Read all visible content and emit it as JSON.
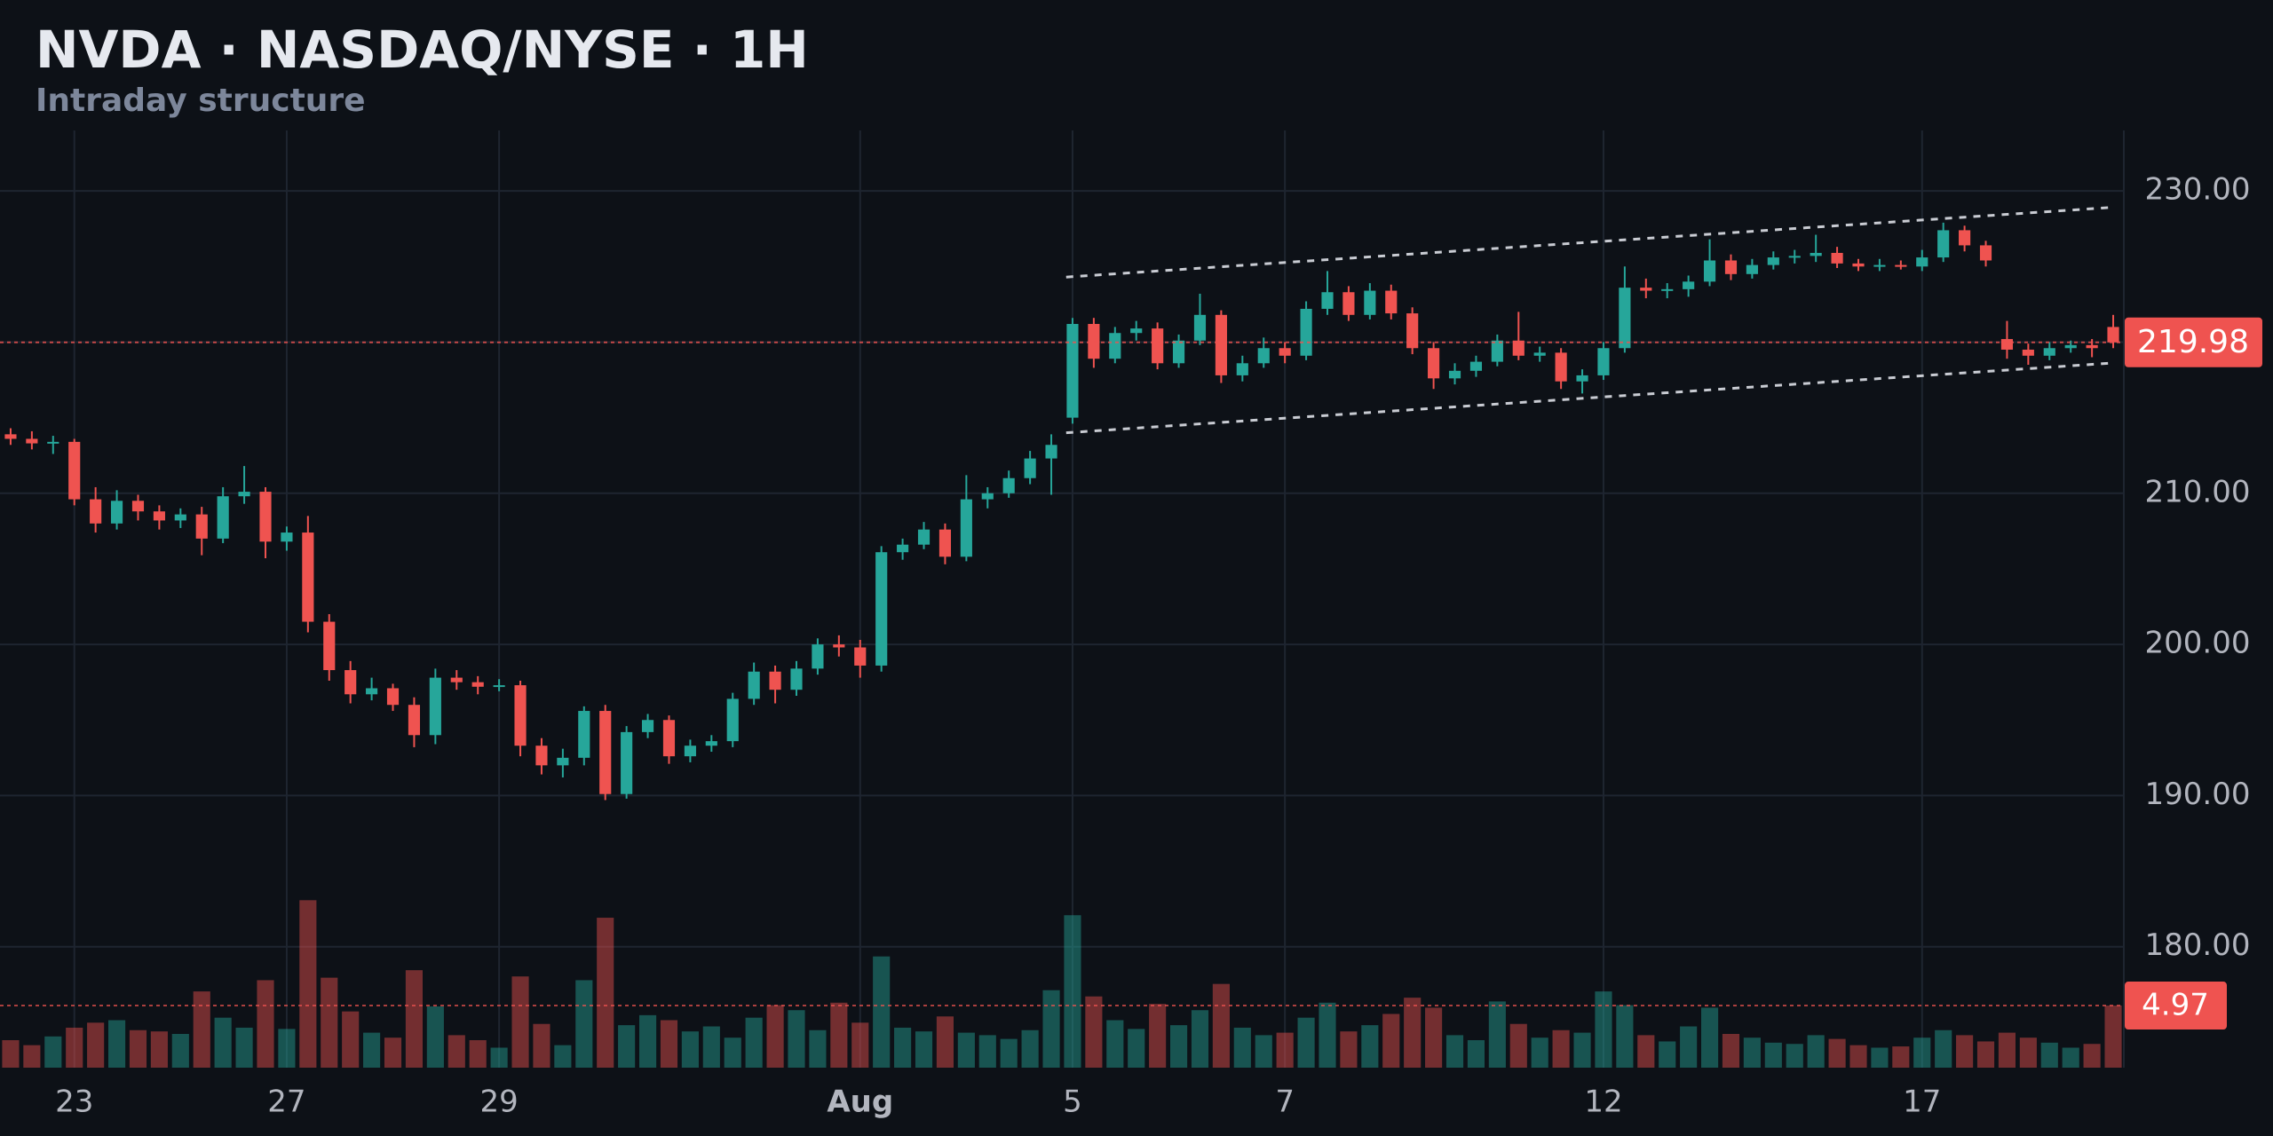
{
  "chart_data": {
    "type": "candlestick",
    "title": "NVDA · NASDAQ/NYSE · 1H",
    "subtitle": "Intraday structure",
    "up_color": "#26a69a",
    "down_color": "#ef5350",
    "grid": true,
    "ylim": [
      172,
      234
    ],
    "yticks": [
      {
        "value": 180,
        "label": "180.00"
      },
      {
        "value": 190,
        "label": "190.00"
      },
      {
        "value": 200,
        "label": "200.00"
      },
      {
        "value": 210,
        "label": "210.00"
      },
      {
        "value": 220,
        "label": "220.00"
      },
      {
        "value": 230,
        "label": "230.00"
      }
    ],
    "volume_ylim": [
      0,
      75
    ],
    "categories": [
      null,
      null,
      null,
      "23",
      null,
      null,
      null,
      null,
      null,
      null,
      null,
      null,
      null,
      "27",
      null,
      null,
      null,
      null,
      null,
      null,
      null,
      null,
      null,
      "29",
      null,
      null,
      null,
      null,
      null,
      null,
      null,
      null,
      null,
      null,
      null,
      null,
      null,
      null,
      null,
      null,
      "Aug",
      null,
      null,
      null,
      null,
      null,
      null,
      null,
      null,
      null,
      "5",
      null,
      null,
      null,
      null,
      null,
      null,
      null,
      null,
      null,
      "7",
      null,
      null,
      null,
      null,
      null,
      null,
      null,
      null,
      null,
      null,
      null,
      null,
      null,
      null,
      "12",
      null,
      null,
      null,
      null,
      null,
      null,
      null,
      null,
      null,
      null,
      null,
      null,
      null,
      null,
      "17",
      null,
      null,
      null,
      null,
      null,
      null,
      null,
      null,
      null
    ],
    "candles": [
      [
        213.9,
        214.3,
        213.2,
        213.6
      ],
      [
        213.6,
        214.1,
        212.9,
        213.3
      ],
      [
        213.3,
        213.8,
        212.6,
        213.4
      ],
      [
        213.4,
        213.6,
        209.2,
        209.6
      ],
      [
        209.6,
        210.4,
        207.4,
        208.0
      ],
      [
        208.0,
        210.2,
        207.6,
        209.5
      ],
      [
        209.5,
        209.9,
        208.2,
        208.8
      ],
      [
        208.8,
        209.2,
        207.6,
        208.2
      ],
      [
        208.2,
        209.0,
        207.7,
        208.6
      ],
      [
        208.6,
        209.1,
        205.9,
        207.0
      ],
      [
        207.0,
        210.4,
        206.7,
        209.8
      ],
      [
        209.8,
        211.8,
        209.3,
        210.1
      ],
      [
        210.1,
        210.4,
        205.7,
        206.8
      ],
      [
        206.8,
        207.8,
        206.2,
        207.4
      ],
      [
        207.4,
        208.5,
        200.8,
        201.5
      ],
      [
        201.5,
        202.0,
        197.6,
        198.3
      ],
      [
        198.3,
        198.9,
        196.1,
        196.7
      ],
      [
        196.7,
        197.8,
        196.3,
        197.1
      ],
      [
        197.1,
        197.4,
        195.6,
        196.0
      ],
      [
        196.0,
        196.5,
        193.2,
        194.0
      ],
      [
        194.0,
        198.4,
        193.4,
        197.8
      ],
      [
        197.8,
        198.3,
        197.0,
        197.5
      ],
      [
        197.5,
        197.9,
        196.7,
        197.2
      ],
      [
        197.2,
        197.7,
        196.9,
        197.3
      ],
      [
        197.3,
        197.6,
        192.6,
        193.3
      ],
      [
        193.3,
        193.8,
        191.4,
        192.0
      ],
      [
        192.0,
        193.1,
        191.2,
        192.5
      ],
      [
        192.5,
        195.9,
        192.0,
        195.6
      ],
      [
        195.6,
        196.0,
        189.7,
        190.1
      ],
      [
        190.1,
        194.6,
        189.8,
        194.2
      ],
      [
        194.2,
        195.4,
        193.8,
        195.0
      ],
      [
        195.0,
        195.3,
        192.1,
        192.6
      ],
      [
        192.6,
        193.7,
        192.2,
        193.3
      ],
      [
        193.3,
        194.0,
        192.9,
        193.6
      ],
      [
        193.6,
        196.8,
        193.2,
        196.4
      ],
      [
        196.4,
        198.8,
        196.0,
        198.2
      ],
      [
        198.2,
        198.6,
        196.1,
        197.0
      ],
      [
        197.0,
        198.9,
        196.6,
        198.4
      ],
      [
        198.4,
        200.4,
        198.0,
        200.0
      ],
      [
        200.0,
        200.6,
        199.2,
        199.8
      ],
      [
        199.8,
        200.3,
        197.8,
        198.6
      ],
      [
        198.6,
        206.5,
        198.2,
        206.1
      ],
      [
        206.1,
        207.0,
        205.6,
        206.6
      ],
      [
        206.6,
        208.1,
        206.3,
        207.6
      ],
      [
        207.6,
        208.0,
        205.3,
        205.8
      ],
      [
        205.8,
        211.2,
        205.5,
        209.6
      ],
      [
        209.6,
        210.4,
        209.0,
        210.0
      ],
      [
        210.0,
        211.5,
        209.7,
        211.0
      ],
      [
        211.0,
        212.8,
        210.6,
        212.3
      ],
      [
        212.3,
        213.9,
        209.9,
        213.2
      ],
      [
        215.0,
        221.6,
        214.6,
        221.2
      ],
      [
        221.2,
        221.6,
        218.3,
        218.9
      ],
      [
        218.9,
        221.0,
        218.6,
        220.6
      ],
      [
        220.6,
        221.4,
        220.1,
        220.9
      ],
      [
        220.9,
        221.3,
        218.2,
        218.6
      ],
      [
        218.6,
        220.5,
        218.3,
        220.1
      ],
      [
        220.1,
        223.2,
        219.8,
        221.8
      ],
      [
        221.8,
        222.1,
        217.3,
        217.8
      ],
      [
        217.8,
        219.1,
        217.4,
        218.6
      ],
      [
        218.6,
        220.3,
        218.3,
        219.6
      ],
      [
        219.6,
        220.0,
        218.6,
        219.1
      ],
      [
        219.1,
        222.7,
        218.8,
        222.2
      ],
      [
        222.2,
        224.7,
        221.8,
        223.3
      ],
      [
        223.3,
        223.7,
        221.4,
        221.8
      ],
      [
        221.8,
        223.9,
        221.5,
        223.4
      ],
      [
        223.4,
        223.8,
        221.5,
        221.9
      ],
      [
        221.9,
        222.3,
        219.2,
        219.6
      ],
      [
        219.6,
        220.0,
        216.9,
        217.6
      ],
      [
        217.6,
        218.6,
        217.2,
        218.1
      ],
      [
        218.1,
        219.1,
        217.7,
        218.7
      ],
      [
        218.7,
        220.5,
        218.4,
        220.1
      ],
      [
        220.1,
        222.0,
        218.8,
        219.1
      ],
      [
        219.1,
        219.7,
        218.7,
        219.3
      ],
      [
        219.3,
        219.6,
        216.9,
        217.4
      ],
      [
        217.4,
        218.2,
        216.6,
        217.8
      ],
      [
        217.8,
        220.0,
        217.5,
        219.6
      ],
      [
        219.6,
        225.0,
        219.3,
        223.6
      ],
      [
        223.6,
        224.2,
        222.9,
        223.4
      ],
      [
        223.4,
        223.9,
        222.9,
        223.5
      ],
      [
        223.5,
        224.4,
        223.0,
        224.0
      ],
      [
        224.0,
        226.8,
        223.7,
        225.4
      ],
      [
        225.4,
        225.8,
        224.1,
        224.5
      ],
      [
        224.5,
        225.5,
        224.2,
        225.1
      ],
      [
        225.1,
        226.0,
        224.8,
        225.6
      ],
      [
        225.6,
        226.1,
        225.2,
        225.7
      ],
      [
        225.7,
        227.1,
        225.3,
        225.9
      ],
      [
        225.9,
        226.3,
        224.9,
        225.2
      ],
      [
        225.2,
        225.5,
        224.7,
        225.0
      ],
      [
        225.0,
        225.5,
        224.7,
        225.1
      ],
      [
        225.1,
        225.4,
        224.8,
        225.0
      ],
      [
        225.0,
        226.1,
        224.7,
        225.6
      ],
      [
        225.6,
        227.9,
        225.3,
        227.4
      ],
      [
        227.4,
        227.7,
        226.0,
        226.4
      ],
      [
        226.4,
        226.7,
        225.0,
        225.4
      ],
      [
        220.2,
        221.4,
        218.9,
        219.5
      ],
      [
        219.5,
        219.9,
        218.5,
        219.1
      ],
      [
        219.1,
        220.0,
        218.8,
        219.6
      ],
      [
        219.6,
        220.1,
        219.3,
        219.8
      ],
      [
        219.8,
        220.2,
        219.0,
        219.6
      ],
      [
        221.0,
        221.8,
        219.6,
        219.98
      ]
    ],
    "volume": [
      2.2,
      1.8,
      2.5,
      3.2,
      3.6,
      3.8,
      3.0,
      2.9,
      2.7,
      6.1,
      4.0,
      3.2,
      7.0,
      3.1,
      13.4,
      7.2,
      4.5,
      2.8,
      2.4,
      7.8,
      4.9,
      2.6,
      2.2,
      1.6,
      7.3,
      3.5,
      1.8,
      7.0,
      12.0,
      3.4,
      4.2,
      3.8,
      2.9,
      3.3,
      2.4,
      4.0,
      5.0,
      4.6,
      3.0,
      5.2,
      3.6,
      8.9,
      3.2,
      2.9,
      4.1,
      2.8,
      2.6,
      2.3,
      3.0,
      6.2,
      12.2,
      5.7,
      3.8,
      3.1,
      5.1,
      3.4,
      4.6,
      6.7,
      3.2,
      2.6,
      2.8,
      4.0,
      5.2,
      2.9,
      3.4,
      4.3,
      5.6,
      4.8,
      2.6,
      2.2,
      5.3,
      3.5,
      2.4,
      3.0,
      2.8,
      6.1,
      5.0,
      2.6,
      2.1,
      3.3,
      4.8,
      2.7,
      2.4,
      2.0,
      1.9,
      2.6,
      2.3,
      1.8,
      1.6,
      1.7,
      2.4,
      3.0,
      2.6,
      2.1,
      2.8,
      2.4,
      2.0,
      1.6,
      1.9,
      4.97
    ],
    "trendlines": [
      {
        "x": [
          49.7,
          98.8
        ],
        "y": [
          224.3,
          228.9
        ]
      },
      {
        "x": [
          49.7,
          98.8
        ],
        "y": [
          214.0,
          218.6
        ]
      }
    ]
  }
}
